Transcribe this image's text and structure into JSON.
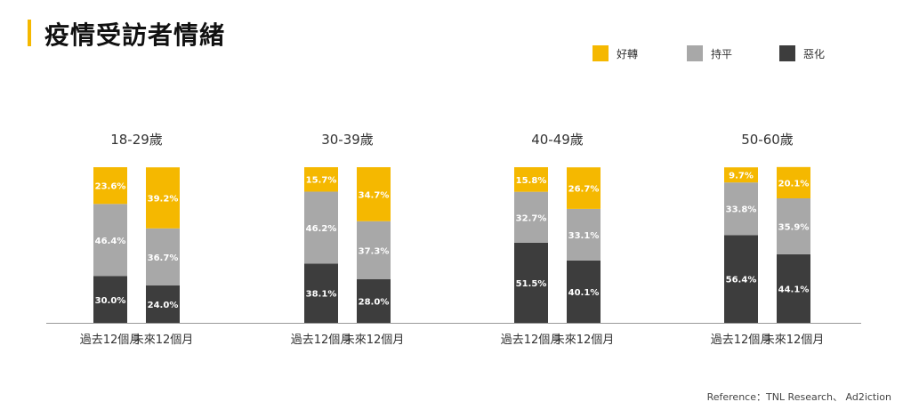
{
  "title": "疫情受訪者情緒",
  "footer": "Reference：TNL Research、 Ad2iction",
  "colors": {
    "accent": "#f5b800",
    "better": "#f5b800",
    "same": "#a8a8a8",
    "worse": "#3d3d3d"
  },
  "legend": [
    {
      "label": "好轉",
      "color": "#f5b800"
    },
    {
      "label": "持平",
      "color": "#a8a8a8"
    },
    {
      "label": "惡化",
      "color": "#3d3d3d"
    }
  ],
  "chart_data": {
    "type": "bar",
    "stacked": true,
    "percent_stacked": true,
    "title": "疫情受訪者情緒",
    "legend_position": "top-right",
    "grid": false,
    "groups": [
      {
        "label": "18-29歲",
        "categories": [
          "過去12個月",
          "未來12個月"
        ],
        "series": {
          "好轉": [
            23.6,
            39.2
          ],
          "持平": [
            46.4,
            36.7
          ],
          "惡化": [
            30.0,
            24.0
          ]
        }
      },
      {
        "label": "30-39歲",
        "categories": [
          "過去12個月",
          "未來12個月"
        ],
        "series": {
          "好轉": [
            15.7,
            34.7
          ],
          "持平": [
            46.2,
            37.3
          ],
          "惡化": [
            38.1,
            28.0
          ]
        }
      },
      {
        "label": "40-49歲",
        "categories": [
          "過去12個月",
          "未來12個月"
        ],
        "series": {
          "好轉": [
            15.8,
            26.7
          ],
          "持平": [
            32.7,
            33.1
          ],
          "惡化": [
            51.5,
            40.1
          ]
        }
      },
      {
        "label": "50-60歲",
        "categories": [
          "過去12個月",
          "未來12個月"
        ],
        "series": {
          "好轉": [
            9.7,
            20.1
          ],
          "持平": [
            33.8,
            35.9
          ],
          "惡化": [
            56.4,
            44.1
          ]
        }
      }
    ]
  }
}
